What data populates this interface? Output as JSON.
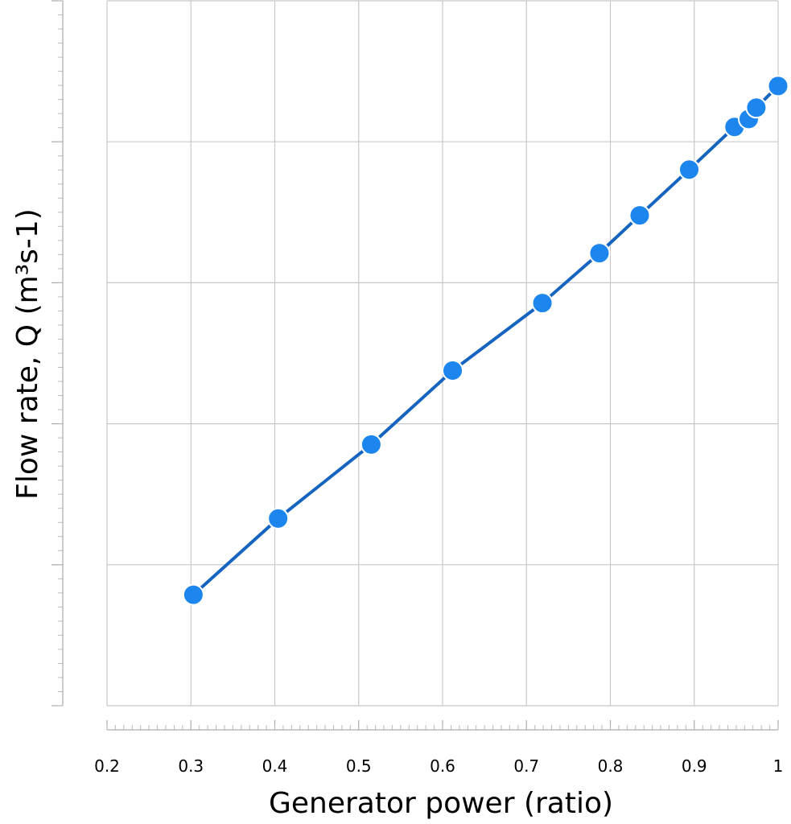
{
  "chart_data": {
    "type": "line",
    "x_label": "Generator power (ratio)",
    "y_label": "Flow rate, Q (m³s-1)",
    "x": [
      0.303,
      0.404,
      0.515,
      0.612,
      0.719,
      0.787,
      0.835,
      0.894,
      0.948,
      0.965,
      0.974,
      1.0
    ],
    "series": [
      {
        "color": "#1c86ee",
        "line_color": "#1565c0",
        "values": [
          0.787,
          1.328,
          1.853,
          2.377,
          2.856,
          3.21,
          3.478,
          3.803,
          4.105,
          4.162,
          4.242,
          4.396
        ]
      }
    ],
    "xlim": [
      0.2,
      1.0
    ],
    "xticks": [
      0.2,
      0.3,
      0.4,
      0.5,
      0.6,
      0.7,
      0.8,
      0.9,
      1
    ],
    "ylim": [
      0,
      5
    ],
    "yticks": [
      0,
      1,
      2,
      3,
      4,
      5
    ],
    "show_ytick_labels": false,
    "grid": true
  }
}
